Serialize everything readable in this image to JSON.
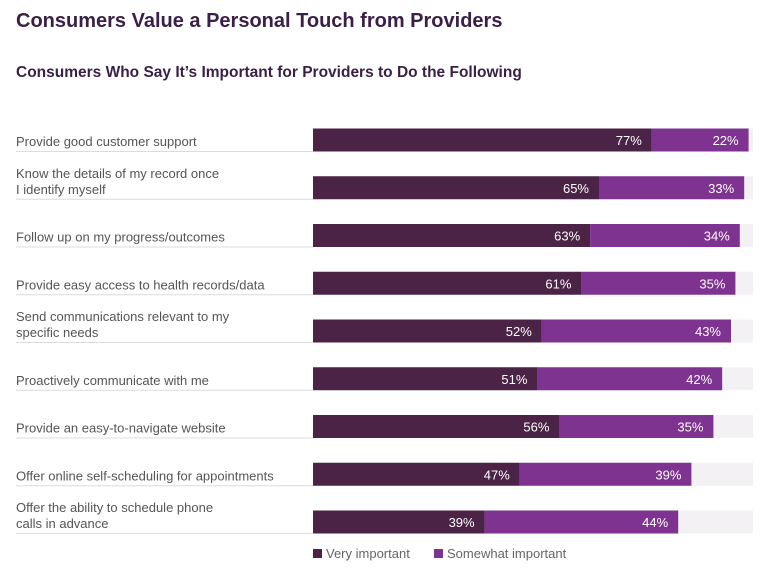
{
  "header": {
    "title": "Consumers Value a Personal Touch from Providers",
    "subtitle": "Consumers Who Say It’s Important for Providers to Do the Following"
  },
  "colors": {
    "very_important": "#4b2346",
    "somewhat_important": "#7e3390",
    "track": "#f3f1f4",
    "separator": "#dcdcdc"
  },
  "chart_data": {
    "type": "bar",
    "orientation": "horizontal",
    "stacked": true,
    "xlim": [
      0,
      100
    ],
    "unit": "%",
    "categories": [
      [
        "Provide good customer support"
      ],
      [
        "Know the details of my record once",
        "I identify myself"
      ],
      [
        "Follow up on my progress/outcomes"
      ],
      [
        "Provide easy access to health records/data"
      ],
      [
        "Send communications relevant to my",
        "specific needs"
      ],
      [
        "Proactively communicate with me"
      ],
      [
        "Provide an easy-to-navigate website"
      ],
      [
        "Offer online self-scheduling for appointments"
      ],
      [
        "Offer the ability to schedule phone",
        "calls in advance"
      ]
    ],
    "series": [
      {
        "name": "Very important",
        "values": [
          77,
          65,
          63,
          61,
          52,
          51,
          56,
          47,
          39
        ]
      },
      {
        "name": "Somewhat important",
        "values": [
          22,
          33,
          34,
          35,
          43,
          42,
          35,
          39,
          44
        ]
      }
    ],
    "legend": {
      "position": "bottom",
      "items": [
        "Very important",
        "Somewhat important"
      ]
    }
  }
}
